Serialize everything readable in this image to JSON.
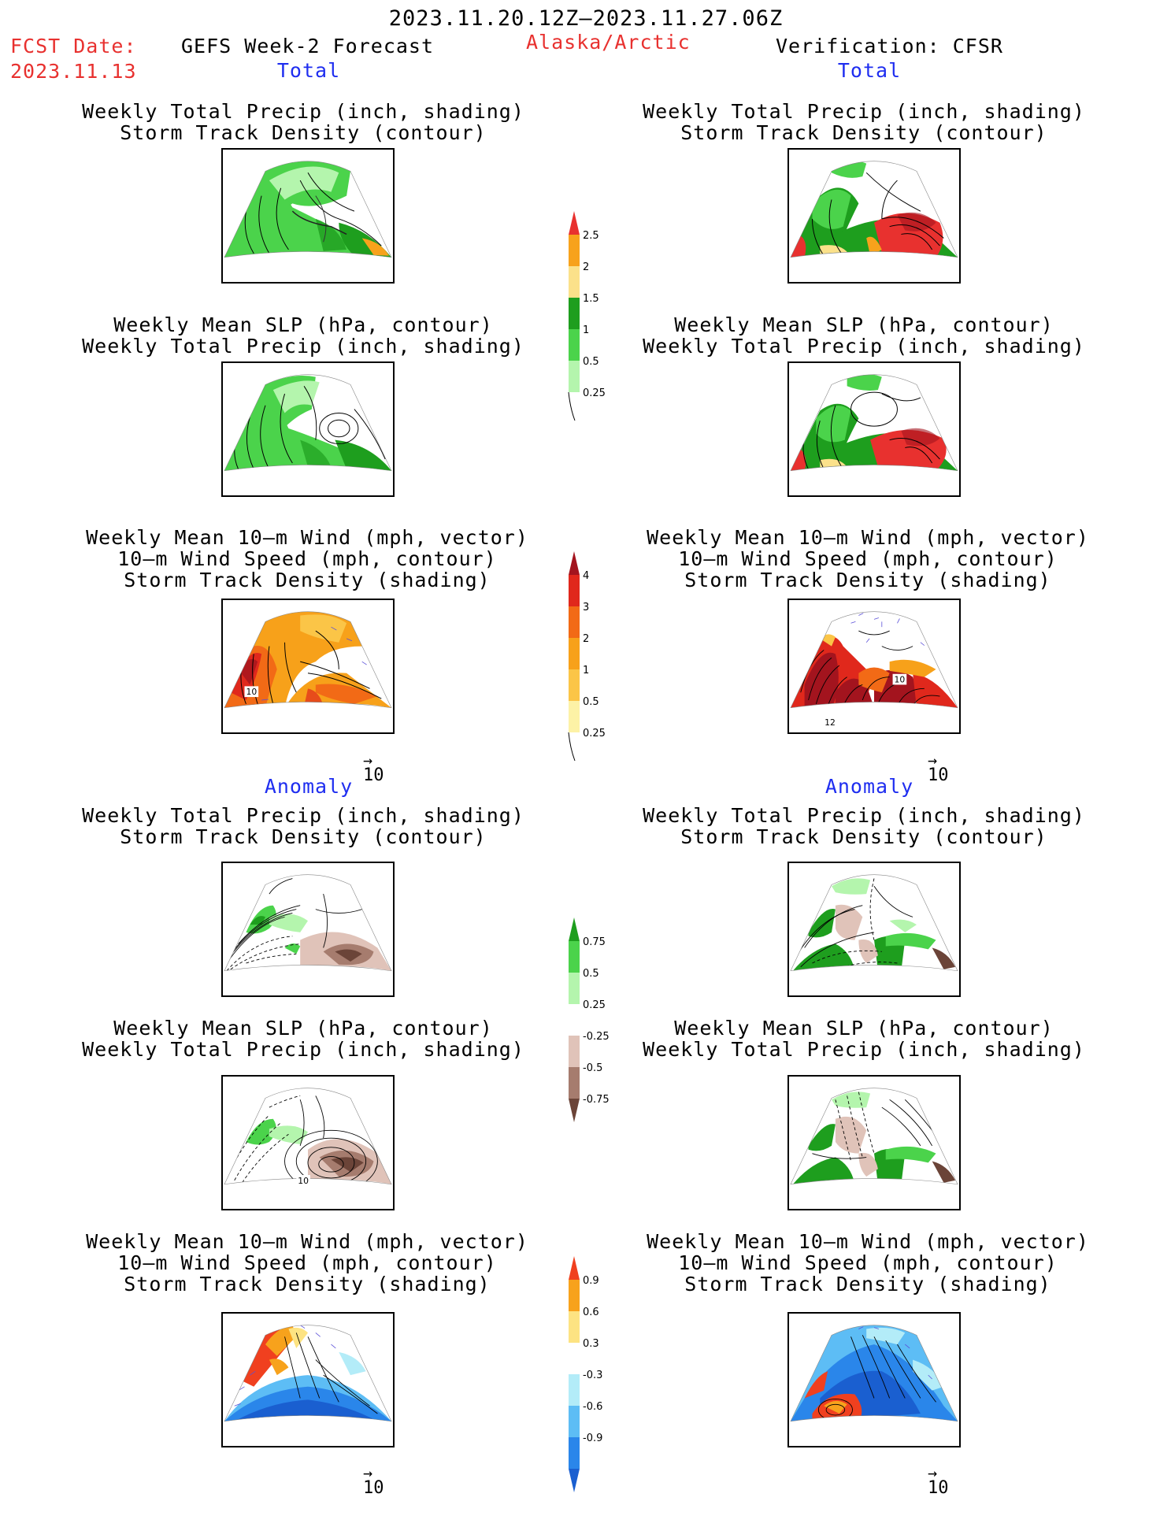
{
  "header": {
    "date_range": "2023.11.20.12Z–2023.11.27.06Z",
    "fcst_label": "FCST Date:",
    "fcst_date": "2023.11.13",
    "left_title": "GEFS Week-2 Forecast",
    "region": "Alaska/Arctic",
    "right_title": "Verification: CFSR"
  },
  "sections": {
    "total_label": "Total",
    "anomaly_label": "Anomaly"
  },
  "panel_titles": {
    "precip_storm_1": "Weekly Total Precip (inch, shading)",
    "precip_storm_2": "Storm Track Density (contour)",
    "slp_precip_1": "Weekly Mean SLP (hPa, contour)",
    "slp_precip_2": "Weekly Total Precip (inch, shading)",
    "wind_1": "Weekly Mean 10–m Wind (mph, vector)",
    "wind_2": "10–m Wind Speed (mph, contour)",
    "wind_3": "Storm Track Density (shading)"
  },
  "panel_labels": {
    "gefs_wind_total": "10",
    "cfsr_wind_total_a": "10",
    "cfsr_wind_total_b": "12",
    "gefs_slp_anom": "10"
  },
  "vector_ref": {
    "label": "10",
    "arrow": "→"
  },
  "colorbars": {
    "precip_total": {
      "labels": [
        "2.5",
        "2",
        "1.5",
        "1",
        "0.5",
        "0.25"
      ],
      "colors": [
        "#e8312f",
        "#f7a21c",
        "#fbe18a",
        "#1e9e1e",
        "#4bd34b",
        "#b4f5ad"
      ]
    },
    "storm_total": {
      "labels": [
        "4",
        "3",
        "2",
        "1",
        "0.5",
        "0.25"
      ],
      "colors": [
        "#a3141e",
        "#e0281c",
        "#f26a16",
        "#f7a11a",
        "#fbc547",
        "#fdf2a6"
      ]
    },
    "precip_anom": {
      "labels": [
        "0.75",
        "0.5",
        "0.25",
        "-0.25",
        "-0.5",
        "-0.75"
      ],
      "colors": [
        "#1e9e1e",
        "#4bd34b",
        "#b4f5ad",
        "#ffffff",
        "#e0c3b9",
        "#a67c6e",
        "#6b4438"
      ]
    },
    "storm_anom": {
      "labels": [
        "0.9",
        "0.6",
        "0.3",
        "-0.3",
        "-0.6",
        "-0.9"
      ],
      "colors": [
        "#f0401f",
        "#f7a21c",
        "#fde382",
        "#ffffff",
        "#b3ecf8",
        "#5dbdf5",
        "#2a86ea",
        "#1a5fd0"
      ]
    }
  }
}
